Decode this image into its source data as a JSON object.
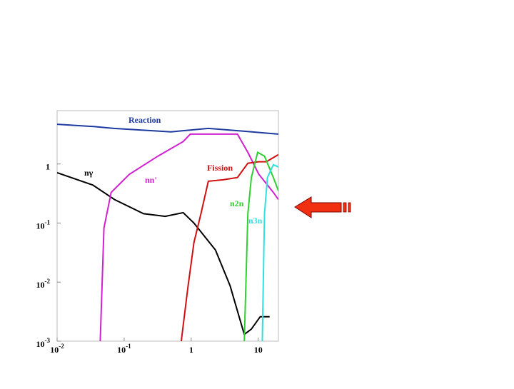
{
  "chart_data": {
    "type": "line",
    "xscale": "log",
    "yscale": "log",
    "xlim": [
      0.01,
      20
    ],
    "ylim": [
      0.001,
      8
    ],
    "xticks": [
      {
        "value": 0.01,
        "label": "10",
        "exponent": "-2"
      },
      {
        "value": 0.1,
        "label": "10",
        "exponent": "-1"
      },
      1,
      10
    ],
    "yticks": [
      {
        "value": 0.001,
        "label": "10",
        "exponent": "-3"
      },
      {
        "value": 0.01,
        "label": "10",
        "exponent": "-2"
      },
      {
        "value": 0.1,
        "label": "10",
        "exponent": "-1"
      },
      1
    ],
    "series": [
      {
        "name": "Reaction",
        "color": "#1c3aa0",
        "x": [
          0.01,
          0.035,
          0.07,
          0.5,
          1.8,
          6,
          20
        ],
        "values": [
          4.7,
          4.3,
          4,
          3.5,
          4,
          3.6,
          3.2
        ]
      },
      {
        "name": "nγ",
        "color": "#000000",
        "x": [
          0.01,
          0.034,
          0.072,
          0.195,
          0.41,
          0.76,
          1.1,
          2.3,
          3.8,
          6.2,
          7.9,
          10.7,
          14.8
        ],
        "values": [
          0.71,
          0.44,
          0.25,
          0.144,
          0.13,
          0.15,
          0.1,
          0.035,
          0.0087,
          0.0013,
          0.0016,
          0.0026,
          0.0026
        ]
      },
      {
        "name": "nn'",
        "color": "#d020d0",
        "x": [
          0.044,
          0.05,
          0.064,
          0.12,
          0.32,
          0.76,
          0.97,
          4.9,
          7,
          10.2,
          16.8,
          20
        ],
        "values": [
          0.001,
          0.082,
          0.33,
          0.67,
          1.36,
          2.4,
          3.2,
          3.2,
          1.57,
          0.67,
          0.33,
          0.25
        ]
      },
      {
        "name": "Fission",
        "color": "#d01010",
        "x": [
          0.71,
          0.9,
          1.1,
          1.4,
          1.8,
          3,
          4.9,
          7,
          10.2,
          13.2,
          20
        ],
        "values": [
          0.001,
          0.0087,
          0.047,
          0.144,
          0.51,
          0.54,
          0.59,
          1.03,
          1.09,
          1.09,
          1.44
        ]
      },
      {
        "name": "n2n",
        "color": "#30d030",
        "x": [
          6.2,
          7,
          7.9,
          9.8,
          12.4,
          16.8,
          20
        ],
        "values": [
          0.001,
          0.144,
          0.59,
          1.57,
          1.36,
          0.59,
          0.35
        ]
      },
      {
        "name": "n3n",
        "color": "#30e0e0",
        "x": [
          11.5,
          12.4,
          13.7,
          16.8,
          20
        ],
        "values": [
          0.001,
          0.144,
          0.59,
          0.97,
          0.89
        ]
      }
    ]
  }
}
